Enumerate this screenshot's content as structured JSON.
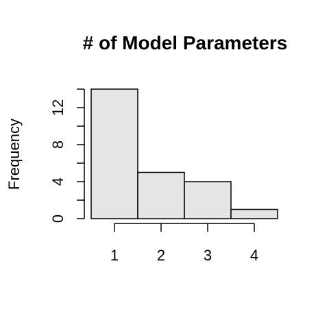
{
  "chart_data": {
    "type": "bar",
    "title": "# of Model Parameters",
    "xlabel": "",
    "ylabel": "Frequency",
    "categories": [
      "1",
      "2",
      "3",
      "4"
    ],
    "values": [
      14,
      5,
      4,
      1
    ],
    "ylim": [
      0,
      14
    ],
    "y_ticks_labeled": [
      0,
      4,
      8,
      12
    ],
    "y_ticks_minor": [
      2,
      6,
      10,
      14
    ],
    "x_ticks": [
      1,
      2,
      3,
      4
    ],
    "bar_color": "#e5e5e5",
    "grid": false
  }
}
